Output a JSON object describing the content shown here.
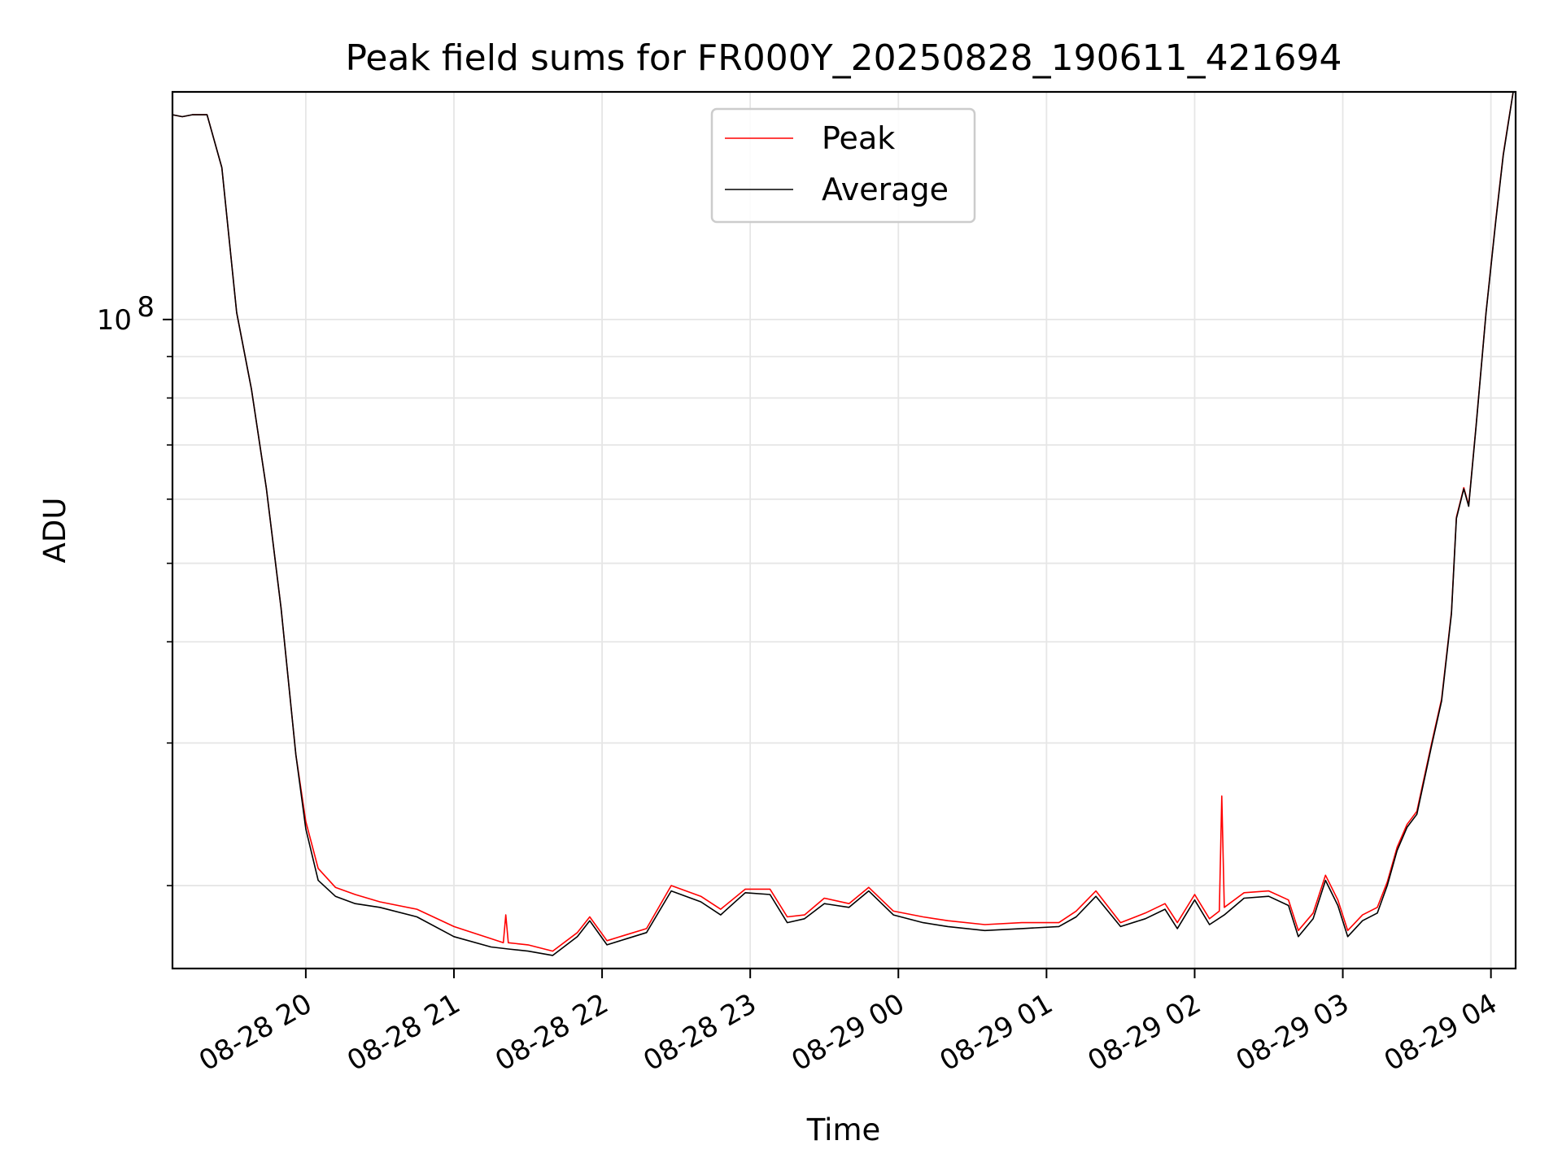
{
  "chart_data": {
    "type": "line",
    "title": "Peak field sums for FR000Y_20250828_190611_421694",
    "xlabel": "Time",
    "ylabel": "ADU",
    "y_scale": "log",
    "ylim": [
      15800000,
      191000000
    ],
    "x_range": [
      "2025-08-28T19:06",
      "2025-08-29T04:10"
    ],
    "x_ticks": [
      {
        "t": "2025-08-28T20:00",
        "label": "08-28 20"
      },
      {
        "t": "2025-08-28T21:00",
        "label": "08-28 21"
      },
      {
        "t": "2025-08-28T22:00",
        "label": "08-28 22"
      },
      {
        "t": "2025-08-28T23:00",
        "label": "08-28 23"
      },
      {
        "t": "2025-08-29T00:00",
        "label": "08-29 00"
      },
      {
        "t": "2025-08-29T01:00",
        "label": "08-29 01"
      },
      {
        "t": "2025-08-29T02:00",
        "label": "08-29 02"
      },
      {
        "t": "2025-08-29T03:00",
        "label": "08-29 03"
      },
      {
        "t": "2025-08-29T04:00",
        "label": "08-29 04"
      }
    ],
    "y_ticks": [
      {
        "v": 100000000,
        "base": "10",
        "exp": "8"
      }
    ],
    "grid": true,
    "legend_position": "top-center",
    "series": [
      {
        "name": "Peak",
        "color": "#ff0000",
        "points": [
          [
            "2025-08-28T19:06",
            179000000
          ],
          [
            "2025-08-28T19:10",
            178000000
          ],
          [
            "2025-08-28T19:14",
            179000000
          ],
          [
            "2025-08-28T19:20",
            179000000
          ],
          [
            "2025-08-28T19:26",
            154000000
          ],
          [
            "2025-08-28T19:32",
            102000000
          ],
          [
            "2025-08-28T19:38",
            82000000
          ],
          [
            "2025-08-28T19:44",
            62000000
          ],
          [
            "2025-08-28T19:50",
            44000000
          ],
          [
            "2025-08-28T19:56",
            29000000
          ],
          [
            "2025-08-28T20:00",
            24000000
          ],
          [
            "2025-08-28T20:05",
            21000000
          ],
          [
            "2025-08-28T20:12",
            19900000
          ],
          [
            "2025-08-28T20:20",
            19500000
          ],
          [
            "2025-08-28T20:30",
            19100000
          ],
          [
            "2025-08-28T20:45",
            18700000
          ],
          [
            "2025-08-28T21:00",
            17800000
          ],
          [
            "2025-08-28T21:15",
            17200000
          ],
          [
            "2025-08-28T21:20",
            17000000
          ],
          [
            "2025-08-28T21:21",
            18400000
          ],
          [
            "2025-08-28T21:22",
            17000000
          ],
          [
            "2025-08-28T21:30",
            16900000
          ],
          [
            "2025-08-28T21:40",
            16600000
          ],
          [
            "2025-08-28T21:50",
            17500000
          ],
          [
            "2025-08-28T21:55",
            18300000
          ],
          [
            "2025-08-28T22:02",
            17100000
          ],
          [
            "2025-08-28T22:10",
            17400000
          ],
          [
            "2025-08-28T22:18",
            17700000
          ],
          [
            "2025-08-28T22:28",
            20000000
          ],
          [
            "2025-08-28T22:40",
            19400000
          ],
          [
            "2025-08-28T22:48",
            18700000
          ],
          [
            "2025-08-28T22:58",
            19800000
          ],
          [
            "2025-08-28T23:08",
            19800000
          ],
          [
            "2025-08-28T23:15",
            18300000
          ],
          [
            "2025-08-28T23:22",
            18400000
          ],
          [
            "2025-08-28T23:30",
            19300000
          ],
          [
            "2025-08-28T23:40",
            19000000
          ],
          [
            "2025-08-28T23:48",
            19900000
          ],
          [
            "2025-08-28T23:58",
            18600000
          ],
          [
            "2025-08-29T00:10",
            18300000
          ],
          [
            "2025-08-29T00:20",
            18100000
          ],
          [
            "2025-08-29T00:35",
            17900000
          ],
          [
            "2025-08-29T00:50",
            18000000
          ],
          [
            "2025-08-29T01:05",
            18000000
          ],
          [
            "2025-08-29T01:12",
            18600000
          ],
          [
            "2025-08-29T01:20",
            19700000
          ],
          [
            "2025-08-29T01:30",
            18000000
          ],
          [
            "2025-08-29T01:40",
            18500000
          ],
          [
            "2025-08-29T01:48",
            19000000
          ],
          [
            "2025-08-29T01:53",
            18000000
          ],
          [
            "2025-08-29T02:00",
            19500000
          ],
          [
            "2025-08-29T02:06",
            18200000
          ],
          [
            "2025-08-29T02:10",
            18600000
          ],
          [
            "2025-08-29T02:11",
            25800000
          ],
          [
            "2025-08-29T02:12",
            18800000
          ],
          [
            "2025-08-29T02:20",
            19600000
          ],
          [
            "2025-08-29T02:30",
            19700000
          ],
          [
            "2025-08-29T02:38",
            19200000
          ],
          [
            "2025-08-29T02:42",
            17600000
          ],
          [
            "2025-08-29T02:48",
            18500000
          ],
          [
            "2025-08-29T02:53",
            20600000
          ],
          [
            "2025-08-29T02:58",
            19200000
          ],
          [
            "2025-08-29T03:02",
            17600000
          ],
          [
            "2025-08-29T03:08",
            18400000
          ],
          [
            "2025-08-29T03:14",
            18800000
          ],
          [
            "2025-08-29T03:18",
            20200000
          ],
          [
            "2025-08-29T03:22",
            22300000
          ],
          [
            "2025-08-29T03:26",
            23800000
          ],
          [
            "2025-08-29T03:30",
            24700000
          ],
          [
            "2025-08-29T03:36",
            30000000
          ],
          [
            "2025-08-29T03:40",
            34000000
          ],
          [
            "2025-08-29T03:44",
            43500000
          ],
          [
            "2025-08-29T03:46",
            57000000
          ],
          [
            "2025-08-29T03:49",
            62000000
          ],
          [
            "2025-08-29T03:51",
            59000000
          ],
          [
            "2025-08-29T03:54",
            74000000
          ],
          [
            "2025-08-29T03:58",
            102000000
          ],
          [
            "2025-08-29T04:02",
            133000000
          ],
          [
            "2025-08-29T04:05",
            160000000
          ],
          [
            "2025-08-29T04:07",
            175000000
          ],
          [
            "2025-08-29T04:09",
            191000000
          ]
        ]
      },
      {
        "name": "Average",
        "color": "#000000",
        "points": [
          [
            "2025-08-28T19:06",
            179000000
          ],
          [
            "2025-08-28T19:10",
            178000000
          ],
          [
            "2025-08-28T19:14",
            179000000
          ],
          [
            "2025-08-28T19:20",
            179000000
          ],
          [
            "2025-08-28T19:26",
            154000000
          ],
          [
            "2025-08-28T19:32",
            102000000
          ],
          [
            "2025-08-28T19:38",
            82000000
          ],
          [
            "2025-08-28T19:44",
            62000000
          ],
          [
            "2025-08-28T19:50",
            44000000
          ],
          [
            "2025-08-28T19:56",
            29000000
          ],
          [
            "2025-08-28T20:00",
            23500000
          ],
          [
            "2025-08-28T20:05",
            20300000
          ],
          [
            "2025-08-28T20:12",
            19400000
          ],
          [
            "2025-08-28T20:20",
            19000000
          ],
          [
            "2025-08-28T20:30",
            18800000
          ],
          [
            "2025-08-28T20:45",
            18300000
          ],
          [
            "2025-08-28T21:00",
            17300000
          ],
          [
            "2025-08-28T21:15",
            16800000
          ],
          [
            "2025-08-28T21:22",
            16700000
          ],
          [
            "2025-08-28T21:30",
            16600000
          ],
          [
            "2025-08-28T21:40",
            16400000
          ],
          [
            "2025-08-28T21:50",
            17300000
          ],
          [
            "2025-08-28T21:55",
            18100000
          ],
          [
            "2025-08-28T22:02",
            16900000
          ],
          [
            "2025-08-28T22:10",
            17200000
          ],
          [
            "2025-08-28T22:18",
            17500000
          ],
          [
            "2025-08-28T22:28",
            19700000
          ],
          [
            "2025-08-28T22:40",
            19100000
          ],
          [
            "2025-08-28T22:48",
            18400000
          ],
          [
            "2025-08-28T22:58",
            19600000
          ],
          [
            "2025-08-28T23:08",
            19500000
          ],
          [
            "2025-08-28T23:15",
            18000000
          ],
          [
            "2025-08-28T23:22",
            18200000
          ],
          [
            "2025-08-28T23:30",
            19000000
          ],
          [
            "2025-08-28T23:40",
            18800000
          ],
          [
            "2025-08-28T23:48",
            19700000
          ],
          [
            "2025-08-28T23:58",
            18400000
          ],
          [
            "2025-08-29T00:10",
            18000000
          ],
          [
            "2025-08-29T00:20",
            17800000
          ],
          [
            "2025-08-29T00:35",
            17600000
          ],
          [
            "2025-08-29T00:50",
            17700000
          ],
          [
            "2025-08-29T01:05",
            17800000
          ],
          [
            "2025-08-29T01:12",
            18300000
          ],
          [
            "2025-08-29T01:20",
            19400000
          ],
          [
            "2025-08-29T01:30",
            17800000
          ],
          [
            "2025-08-29T01:40",
            18200000
          ],
          [
            "2025-08-29T01:48",
            18700000
          ],
          [
            "2025-08-29T01:53",
            17700000
          ],
          [
            "2025-08-29T02:00",
            19200000
          ],
          [
            "2025-08-29T02:06",
            17900000
          ],
          [
            "2025-08-29T02:12",
            18400000
          ],
          [
            "2025-08-29T02:20",
            19300000
          ],
          [
            "2025-08-29T02:30",
            19400000
          ],
          [
            "2025-08-29T02:38",
            18900000
          ],
          [
            "2025-08-29T02:42",
            17300000
          ],
          [
            "2025-08-29T02:48",
            18200000
          ],
          [
            "2025-08-29T02:53",
            20300000
          ],
          [
            "2025-08-29T02:58",
            18900000
          ],
          [
            "2025-08-29T03:02",
            17300000
          ],
          [
            "2025-08-29T03:08",
            18100000
          ],
          [
            "2025-08-29T03:14",
            18500000
          ],
          [
            "2025-08-29T03:18",
            20000000
          ],
          [
            "2025-08-29T03:22",
            22100000
          ],
          [
            "2025-08-29T03:26",
            23600000
          ],
          [
            "2025-08-29T03:30",
            24500000
          ],
          [
            "2025-08-29T03:36",
            29800000
          ],
          [
            "2025-08-29T03:40",
            33800000
          ],
          [
            "2025-08-29T03:44",
            43300000
          ],
          [
            "2025-08-29T03:46",
            56800000
          ],
          [
            "2025-08-29T03:49",
            61800000
          ],
          [
            "2025-08-29T03:51",
            58800000
          ],
          [
            "2025-08-29T03:54",
            73800000
          ],
          [
            "2025-08-29T03:58",
            101800000
          ],
          [
            "2025-08-29T04:02",
            132500000
          ],
          [
            "2025-08-29T04:05",
            159500000
          ],
          [
            "2025-08-29T04:07",
            174500000
          ],
          [
            "2025-08-29T04:09",
            191000000
          ]
        ]
      }
    ]
  }
}
